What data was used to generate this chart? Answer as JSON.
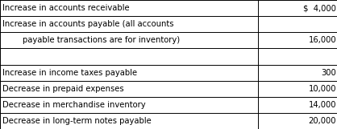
{
  "rows": [
    {
      "label": "Increase in accounts receivable",
      "value": "$  4,000"
    },
    {
      "label": "Increase in accounts payable (all accounts",
      "value": ""
    },
    {
      "label": "        payable transactions are for inventory)",
      "value": "16,000"
    },
    {
      "label": "",
      "value": ""
    },
    {
      "label": "Increase in income taxes payable",
      "value": "300"
    },
    {
      "label": "Decrease in prepaid expenses",
      "value": "10,000"
    },
    {
      "label": "Decrease in merchandise inventory",
      "value": "14,000"
    },
    {
      "label": "Decrease in long-term notes payable",
      "value": "20,000"
    }
  ],
  "col_split": 0.765,
  "bg_color": "#ffffff",
  "border_color": "#000000",
  "font_size": 7.2,
  "font_family": "DejaVu Sans"
}
